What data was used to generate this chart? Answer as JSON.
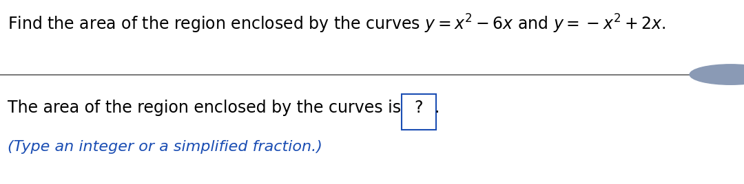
{
  "line3": "(Type an integer or a simplified fraction.)",
  "bg_color": "#ffffff",
  "text_color": "#000000",
  "blue_color": "#1a4db3",
  "line_color": "#606060",
  "title_fontsize": 17,
  "body_fontsize": 17,
  "small_fontsize": 16,
  "scrollbar_color": "#8a9ab5"
}
